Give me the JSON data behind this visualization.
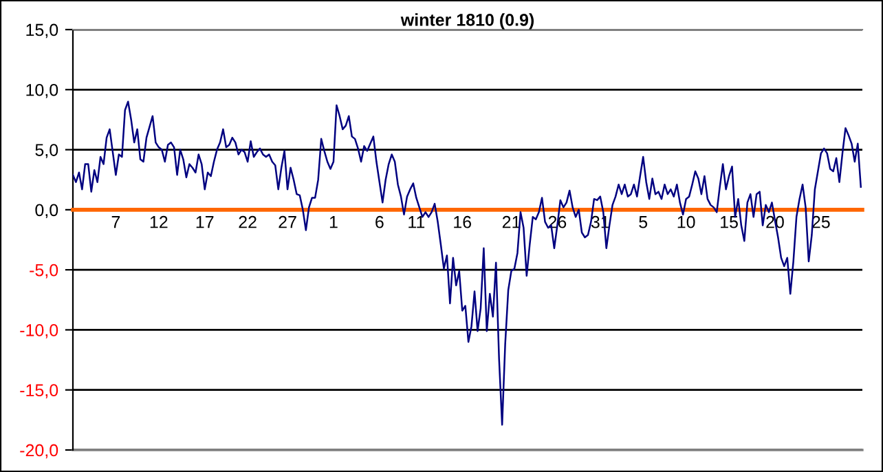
{
  "chart_data": {
    "type": "line",
    "title": "winter 1810 (0.9)",
    "categories": [
      null,
      null,
      null,
      null,
      null,
      null,
      null,
      null,
      null,
      null,
      null,
      null,
      null,
      null,
      "7",
      null,
      null,
      null,
      null,
      null,
      null,
      null,
      null,
      null,
      null,
      null,
      null,
      null,
      "12",
      null,
      null,
      null,
      null,
      null,
      null,
      null,
      null,
      null,
      null,
      null,
      null,
      null,
      null,
      "17",
      null,
      null,
      null,
      null,
      null,
      null,
      null,
      null,
      null,
      null,
      null,
      null,
      null,
      "22",
      null,
      null,
      null,
      null,
      null,
      null,
      null,
      null,
      null,
      null,
      null,
      null,
      "27",
      null,
      null,
      null,
      null,
      null,
      null,
      null,
      null,
      null,
      null,
      null,
      null,
      null,
      null,
      "1",
      null,
      null,
      null,
      null,
      null,
      null,
      null,
      null,
      null,
      null,
      null,
      null,
      null,
      null,
      "6",
      null,
      null,
      null,
      null,
      null,
      null,
      null,
      null,
      null,
      null,
      null,
      "11",
      null,
      null,
      null,
      null,
      null,
      null,
      null,
      null,
      null,
      null,
      null,
      null,
      null,
      null,
      "16",
      null,
      null,
      null,
      null,
      null,
      null,
      null,
      null,
      null,
      null,
      null,
      null,
      null,
      null,
      null,
      "21",
      null,
      null,
      null,
      null,
      null,
      null,
      null,
      null,
      null,
      null,
      null,
      null,
      null,
      null,
      "26",
      null,
      null,
      null,
      null,
      null,
      null,
      null,
      null,
      null,
      null,
      null,
      null,
      null,
      "31",
      null,
      null,
      null,
      null,
      null,
      null,
      null,
      null,
      null,
      null,
      null,
      null,
      null,
      "5",
      null,
      null,
      null,
      null,
      null,
      null,
      null,
      null,
      null,
      null,
      null,
      null,
      null,
      "10",
      null,
      null,
      null,
      null,
      null,
      null,
      null,
      null,
      null,
      null,
      null,
      null,
      null,
      "15",
      null,
      null,
      null,
      null,
      null,
      null,
      null,
      null,
      null,
      null,
      null,
      null,
      null,
      null,
      "20",
      null,
      null,
      null,
      null,
      null,
      null,
      null,
      null,
      null,
      null,
      null,
      null,
      null,
      null,
      "25",
      null,
      null,
      null,
      null,
      null,
      null,
      null,
      null,
      null,
      null,
      null,
      null,
      null
    ],
    "series": [
      {
        "color": "#000080",
        "values": [
          2.9,
          2.3,
          3.1,
          1.7,
          3.8,
          3.8,
          1.5,
          3.3,
          2.3,
          4.4,
          3.8,
          6.0,
          6.7,
          4.8,
          2.9,
          4.6,
          4.4,
          8.3,
          9.0,
          7.5,
          5.6,
          6.7,
          4.2,
          4.0,
          6.0,
          6.9,
          7.8,
          5.6,
          5.2,
          5.0,
          4.0,
          5.4,
          5.6,
          5.2,
          2.9,
          5.0,
          4.2,
          2.7,
          3.8,
          3.5,
          3.1,
          4.6,
          3.8,
          1.7,
          3.1,
          2.8,
          4.0,
          5.0,
          5.6,
          6.7,
          5.2,
          5.4,
          6.0,
          5.6,
          4.6,
          5.0,
          4.8,
          4.0,
          5.7,
          4.4,
          4.8,
          5.1,
          4.6,
          4.4,
          4.6,
          4.0,
          3.7,
          1.7,
          3.5,
          4.9,
          1.7,
          3.5,
          2.5,
          1.3,
          1.2,
          0.0,
          -1.7,
          0.2,
          1.0,
          1.0,
          2.5,
          5.9,
          4.9,
          4.0,
          3.4,
          4.0,
          8.7,
          7.8,
          6.7,
          7.0,
          7.8,
          6.1,
          5.9,
          5.1,
          4.0,
          5.3,
          4.9,
          5.5,
          6.1,
          4.0,
          2.3,
          0.6,
          2.5,
          3.8,
          4.6,
          4.0,
          2.1,
          1.1,
          -0.4,
          1.1,
          1.7,
          2.2,
          1.0,
          0.2,
          -0.6,
          -0.2,
          -0.6,
          -0.2,
          0.5,
          -1.0,
          -2.9,
          -4.9,
          -3.8,
          -7.8,
          -4.0,
          -6.3,
          -5.1,
          -8.4,
          -8.0,
          -11.0,
          -9.7,
          -6.8,
          -10.1,
          -8.2,
          -3.2,
          -10.1,
          -7.0,
          -8.9,
          -4.4,
          -12.4,
          -17.9,
          -11.2,
          -6.7,
          -5.1,
          -4.9,
          -3.6,
          -0.2,
          -1.5,
          -5.5,
          -2.9,
          -0.6,
          -0.8,
          -0.2,
          1.0,
          -1.0,
          -1.5,
          -1.3,
          -3.2,
          -1.3,
          0.8,
          0.2,
          0.6,
          1.6,
          0.2,
          -0.6,
          0.0,
          -1.9,
          -2.3,
          -2.1,
          -1.0,
          0.9,
          0.8,
          1.1,
          -0.2,
          -3.2,
          -1.3,
          0.4,
          1.1,
          2.1,
          1.3,
          2.1,
          1.1,
          1.3,
          2.1,
          1.1,
          2.8,
          4.4,
          2.3,
          0.9,
          2.6,
          1.3,
          1.5,
          0.9,
          2.1,
          1.3,
          1.7,
          1.1,
          2.1,
          0.6,
          -0.4,
          0.9,
          1.1,
          2.1,
          3.2,
          2.6,
          1.3,
          2.8,
          0.9,
          0.4,
          0.2,
          -0.2,
          1.9,
          3.8,
          1.7,
          2.8,
          3.6,
          -0.6,
          0.9,
          -1.3,
          -2.6,
          0.6,
          1.3,
          -0.6,
          1.3,
          1.5,
          -1.3,
          0.4,
          -0.2,
          0.6,
          -0.9,
          -2.3,
          -4.0,
          -4.7,
          -4.0,
          -7.0,
          -4.3,
          -0.6,
          0.9,
          2.1,
          0.2,
          -4.3,
          -2.1,
          1.7,
          3.2,
          4.7,
          5.1,
          4.7,
          3.4,
          3.2,
          4.3,
          2.3,
          4.7,
          6.8,
          6.2,
          5.5,
          4.0,
          5.5,
          1.9
        ]
      }
    ],
    "ylim": [
      -20,
      15
    ],
    "yticks": [
      {
        "value": -20,
        "label": "-20,0"
      },
      {
        "value": -15,
        "label": "-15,0"
      },
      {
        "value": -10,
        "label": "-10,0"
      },
      {
        "value": -5,
        "label": "-5,0"
      },
      {
        "value": 0,
        "label": "0,0"
      },
      {
        "value": 5,
        "label": "5,0"
      },
      {
        "value": 10,
        "label": "10,0"
      },
      {
        "value": 15,
        "label": "15,0"
      }
    ],
    "grid": "y",
    "legend": false,
    "marker": "none",
    "line_style": "solid"
  }
}
